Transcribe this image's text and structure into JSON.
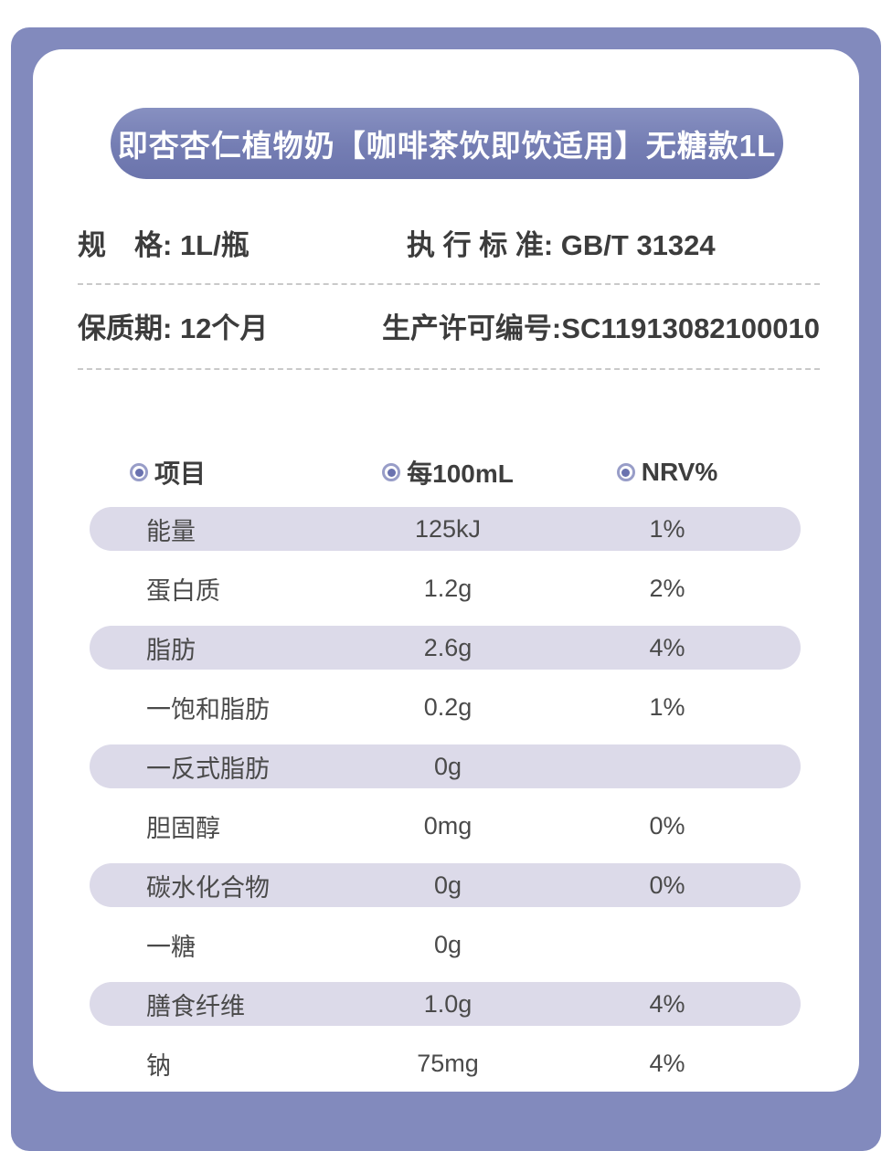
{
  "colors": {
    "frame": "#828ABD",
    "title_pill": "#747DB3",
    "title_text": "#FFFFFF",
    "row_shade": "#DCDAE9",
    "spec_text": "#3C3C3C",
    "row_text": "#4A4A4A",
    "bullet_ring": "#989DC8",
    "bullet_dot": "#6A72AF",
    "dashed_divider": "#C9C9C9"
  },
  "title": "即杏杏仁植物奶【咖啡茶饮即饮适用】无糖款1L",
  "specs": {
    "rows": [
      {
        "left_label": "规　格: ",
        "left_value": "1L/瓶",
        "right_label": "执 行 标 准: ",
        "right_value": "GB/T 31324"
      },
      {
        "left_label": "保质期: ",
        "left_value": "12个月",
        "right_label": "生产许可编号:",
        "right_value": "SC11913082100010"
      }
    ]
  },
  "nutrition_table": {
    "headers": [
      "项目",
      "每100mL",
      "NRV%"
    ],
    "header_icon": "bullseye-bullet-icon",
    "rows": [
      {
        "name": "能量",
        "per_100ml": "125kJ",
        "nrv": "1%",
        "shaded": true
      },
      {
        "name": "蛋白质",
        "per_100ml": "1.2g",
        "nrv": "2%",
        "shaded": false
      },
      {
        "name": "脂肪",
        "per_100ml": "2.6g",
        "nrv": "4%",
        "shaded": true
      },
      {
        "name": "一饱和脂肪",
        "per_100ml": "0.2g",
        "nrv": "1%",
        "shaded": false
      },
      {
        "name": "一反式脂肪",
        "per_100ml": "0g",
        "nrv": "",
        "shaded": true
      },
      {
        "name": "胆固醇",
        "per_100ml": "0mg",
        "nrv": "0%",
        "shaded": false
      },
      {
        "name": "碳水化合物",
        "per_100ml": "0g",
        "nrv": "0%",
        "shaded": true
      },
      {
        "name": "一糖",
        "per_100ml": "0g",
        "nrv": "",
        "shaded": false
      },
      {
        "name": "膳食纤维",
        "per_100ml": "1.0g",
        "nrv": "4%",
        "shaded": true
      },
      {
        "name": "钠",
        "per_100ml": "75mg",
        "nrv": "4%",
        "shaded": false
      }
    ]
  }
}
